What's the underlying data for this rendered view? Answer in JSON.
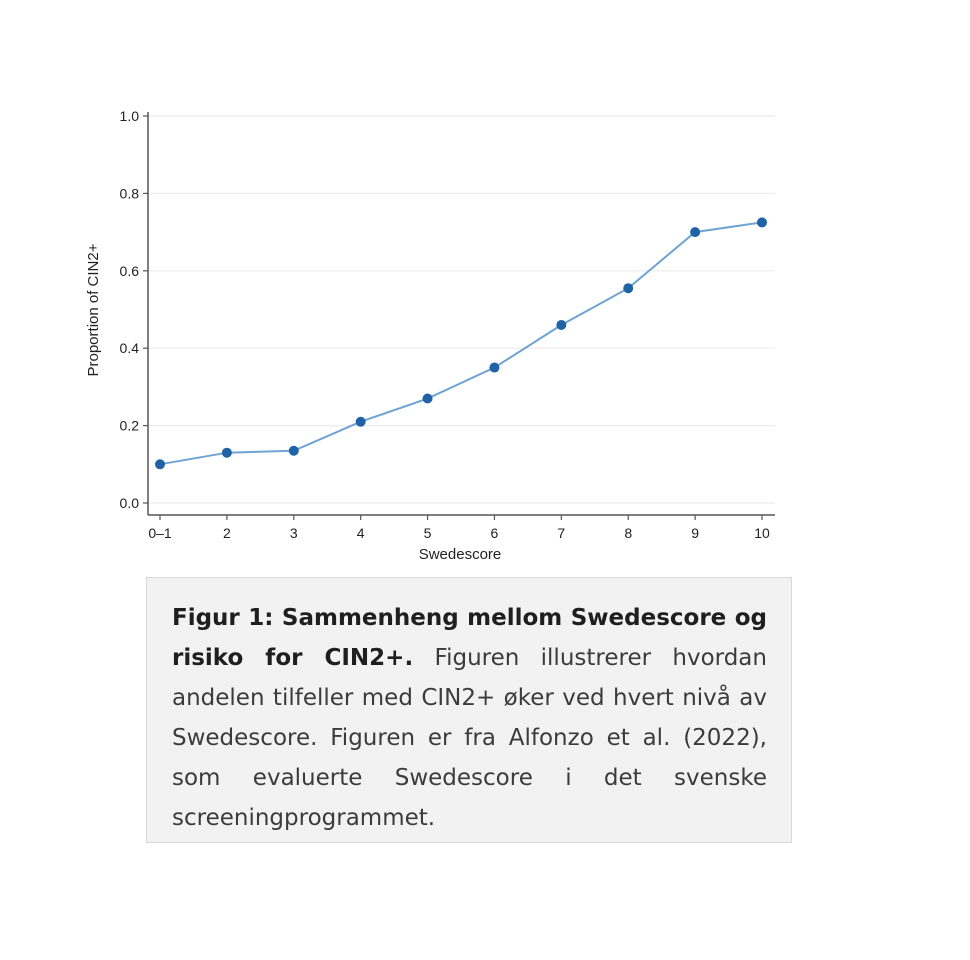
{
  "chart_data": {
    "type": "line",
    "xlabel": "Swedescore",
    "ylabel": "Proportion of CIN2+",
    "categories": [
      "0–1",
      "2",
      "3",
      "4",
      "5",
      "6",
      "7",
      "8",
      "9",
      "10"
    ],
    "values": [
      0.1,
      0.13,
      0.135,
      0.21,
      0.27,
      0.35,
      0.46,
      0.555,
      0.7,
      0.725
    ],
    "ylim": [
      0.0,
      1.0
    ],
    "yticks": [
      "0.0",
      "0.2",
      "0.4",
      "0.6",
      "0.8",
      "1.0"
    ],
    "grid": true,
    "colors": {
      "line": "#6fa3d3",
      "marker": "#1f63a6",
      "grid": "#ececec",
      "axis": "#555555"
    }
  },
  "caption": {
    "title": "Figur 1: Sammenheng mellom Swedescore og risiko for CIN2+.",
    "body": " Figuren illustrerer hvordan andelen tilfeller med CIN2+ øker ved hvert nivå av Swedescore. Figuren er fra Alfonzo et al. (2022), som evaluerte Swedescore i det svenske screeningprogrammet."
  }
}
